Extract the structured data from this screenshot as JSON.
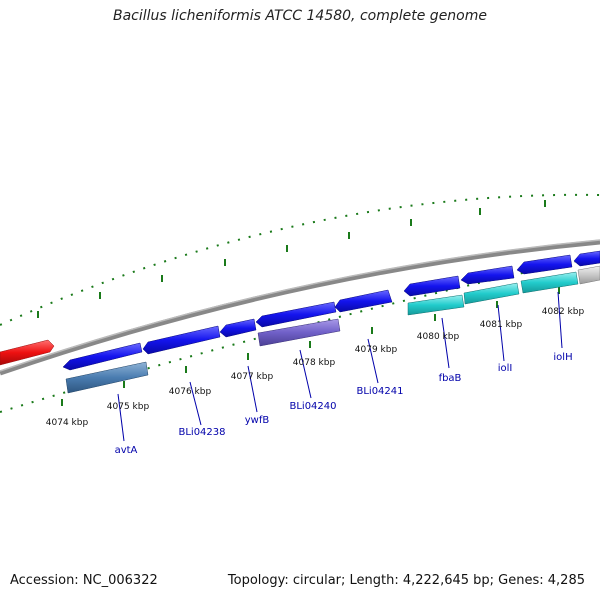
{
  "title": "Bacillus licheniformis ATCC 14580, complete genome",
  "footer": {
    "accession": "Accession: NC_006322",
    "stats": "Topology: circular; Length: 4,222,645 bp; Genes: 4,285"
  },
  "scale_labels": [
    "4074 kbp",
    "4075 kbp",
    "4076 kbp",
    "4077 kbp",
    "4078 kbp",
    "4079 kbp",
    "4080 kbp",
    "4081 kbp",
    "4082 kbp"
  ],
  "gene_labels": [
    "avtA",
    "BLi04238",
    "ywfB",
    "BLi04240",
    "BLi04241",
    "fbaB",
    "iolI",
    "iolH"
  ],
  "colors": {
    "cds_forward": "#1010ee",
    "cds_cyan": "#22cccc",
    "feature_steelblue": "#4a7cb0",
    "feature_purple": "#7060c8",
    "feature_red": "#ee1111",
    "feature_gray": "#c8c8c8",
    "backbone": "#888888",
    "ticks": "#1a7a1a",
    "labels": "#0000aa"
  }
}
